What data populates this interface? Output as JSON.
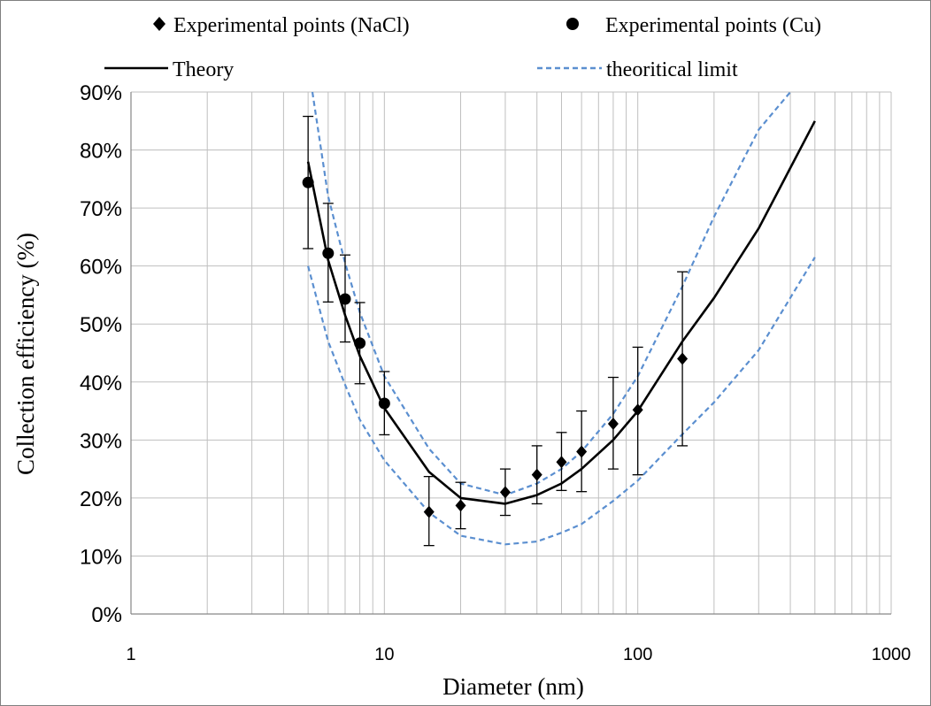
{
  "chart_data": {
    "type": "scatter",
    "xlabel": "Diameter (nm)",
    "ylabel": "Collection efficiency   (%)",
    "x_scale": "log",
    "xlim": [
      1,
      1000
    ],
    "ylim": [
      0,
      0.9
    ],
    "x_ticks": [
      1,
      10,
      100,
      1000
    ],
    "x_tick_labels": [
      "1",
      "10",
      "100",
      "1000"
    ],
    "y_ticks": [
      0,
      0.1,
      0.2,
      0.3,
      0.4,
      0.5,
      0.6,
      0.7,
      0.8,
      0.9
    ],
    "y_tick_labels": [
      "0%",
      "10%",
      "20%",
      "30%",
      "40%",
      "50%",
      "60%",
      "70%",
      "80%",
      "90%"
    ],
    "grid": true,
    "legend_position": "top",
    "colors": {
      "theory": "#000000",
      "limit": "#5b8fd0",
      "grid": "#bfbfbf",
      "axis": "#868686"
    },
    "series": [
      {
        "name": "Experimental points (NaCl)",
        "kind": "marker",
        "marker": "diamond",
        "x": [
          15,
          20,
          30,
          40,
          50,
          60,
          80,
          100,
          150
        ],
        "y": [
          0.176,
          0.187,
          0.21,
          0.24,
          0.262,
          0.28,
          0.328,
          0.352,
          0.44
        ],
        "err_low": [
          0.118,
          0.147,
          0.17,
          0.19,
          0.213,
          0.211,
          0.25,
          0.24,
          0.29
        ],
        "err_high": [
          0.237,
          0.227,
          0.25,
          0.29,
          0.313,
          0.35,
          0.408,
          0.46,
          0.59
        ]
      },
      {
        "name": "Experimental points (Cu)",
        "kind": "marker",
        "marker": "circle",
        "x": [
          5,
          6,
          7,
          8,
          10
        ],
        "y": [
          0.744,
          0.622,
          0.543,
          0.467,
          0.363
        ],
        "err_low": [
          0.63,
          0.538,
          0.469,
          0.397,
          0.309
        ],
        "err_high": [
          0.858,
          0.708,
          0.619,
          0.537,
          0.418
        ]
      },
      {
        "name": "Theory",
        "kind": "line",
        "x": [
          5,
          6,
          7,
          8,
          10,
          15,
          20,
          30,
          40,
          50,
          60,
          80,
          100,
          150,
          200,
          300,
          500
        ],
        "y": [
          0.78,
          0.61,
          0.515,
          0.445,
          0.355,
          0.245,
          0.2,
          0.19,
          0.205,
          0.225,
          0.25,
          0.3,
          0.35,
          0.47,
          0.545,
          0.665,
          0.85
        ]
      },
      {
        "name": "theoritical limit",
        "kind": "dashed",
        "x": [
          5.2,
          6,
          7,
          8,
          10,
          15,
          20,
          30,
          40,
          50,
          60,
          80,
          100,
          150,
          200,
          300,
          400
        ],
        "y": [
          0.9,
          0.72,
          0.605,
          0.52,
          0.41,
          0.285,
          0.225,
          0.205,
          0.225,
          0.25,
          0.28,
          0.345,
          0.41,
          0.565,
          0.685,
          0.835,
          0.9
        ]
      },
      {
        "name": "",
        "kind": "dashed",
        "x": [
          5,
          6,
          7,
          8,
          10,
          15,
          20,
          30,
          40,
          50,
          60,
          80,
          100,
          150,
          200,
          300,
          500
        ],
        "y": [
          0.6,
          0.47,
          0.395,
          0.335,
          0.265,
          0.175,
          0.135,
          0.12,
          0.125,
          0.14,
          0.155,
          0.195,
          0.23,
          0.31,
          0.365,
          0.455,
          0.615
        ]
      }
    ]
  }
}
